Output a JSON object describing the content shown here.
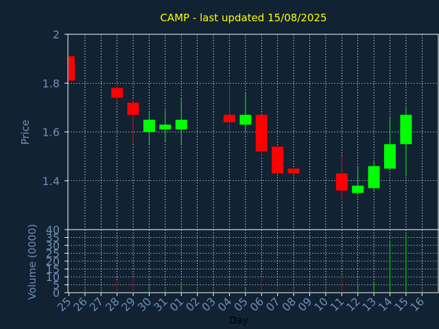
{
  "chart_data": {
    "type": "candlestick",
    "title": "CAMP - last updated 15/08/2025",
    "xlabel": "Day",
    "colors": {
      "background": "#112233",
      "grid": "#ffffff",
      "tick_text": "#6f8fb3",
      "title": "#ffff00",
      "xlabel": "#000000",
      "up": "#00ff00",
      "down": "#ff0000",
      "volume_up": "#00bb00",
      "volume_down": "#aa0000"
    },
    "days": [
      "25",
      "26",
      "27",
      "28",
      "29",
      "30",
      "31",
      "01",
      "02",
      "03",
      "04",
      "05",
      "06",
      "07",
      "08",
      "09",
      "10",
      "11",
      "12",
      "13",
      "14",
      "15",
      "16"
    ],
    "price_panel": {
      "ylabel": "Price",
      "ylim": [
        1.2,
        2.0
      ],
      "yticks": [
        1.4,
        1.6,
        1.8,
        2.0
      ],
      "ytick_labels": [
        "1.4",
        "1.6",
        "1.8",
        "2"
      ],
      "candles": [
        {
          "day": "25",
          "open": 1.91,
          "high": 1.91,
          "low": 1.81,
          "close": 1.81
        },
        {
          "day": "28",
          "open": 1.78,
          "high": 1.8,
          "low": 1.72,
          "close": 1.74
        },
        {
          "day": "29",
          "open": 1.72,
          "high": 1.73,
          "low": 1.55,
          "close": 1.67
        },
        {
          "day": "30",
          "open": 1.6,
          "high": 1.68,
          "low": 1.55,
          "close": 1.65
        },
        {
          "day": "31",
          "open": 1.61,
          "high": 1.69,
          "low": 1.56,
          "close": 1.63
        },
        {
          "day": "01",
          "open": 1.61,
          "high": 1.74,
          "low": 1.55,
          "close": 1.65
        },
        {
          "day": "04",
          "open": 1.67,
          "high": 1.82,
          "low": 1.57,
          "close": 1.64
        },
        {
          "day": "05",
          "open": 1.63,
          "high": 1.76,
          "low": 1.6,
          "close": 1.67
        },
        {
          "day": "06",
          "open": 1.67,
          "high": 1.67,
          "low": 1.5,
          "close": 1.52
        },
        {
          "day": "07",
          "open": 1.54,
          "high": 1.54,
          "low": 1.43,
          "close": 1.43
        },
        {
          "day": "08",
          "open": 1.45,
          "high": 1.45,
          "low": 1.43,
          "close": 1.43
        },
        {
          "day": "11",
          "open": 1.43,
          "high": 1.5,
          "low": 1.32,
          "close": 1.36
        },
        {
          "day": "12",
          "open": 1.35,
          "high": 1.46,
          "low": 1.35,
          "close": 1.38
        },
        {
          "day": "13",
          "open": 1.37,
          "high": 1.48,
          "low": 1.36,
          "close": 1.46
        },
        {
          "day": "14",
          "open": 1.45,
          "high": 1.66,
          "low": 1.45,
          "close": 1.55
        },
        {
          "day": "15",
          "open": 1.55,
          "high": 1.7,
          "low": 1.42,
          "close": 1.67
        }
      ]
    },
    "volume_panel": {
      "ylabel": "Volume (0000)",
      "ylim": [
        0,
        40
      ],
      "yticks": [
        0,
        5,
        10,
        15,
        20,
        25,
        30,
        35,
        40
      ],
      "ytick_labels": [
        "0",
        "5",
        "10",
        "15",
        "20",
        "25",
        "30",
        "35",
        "40"
      ],
      "bars": [
        {
          "day": "28",
          "value": 8,
          "direction": "down"
        },
        {
          "day": "29",
          "value": 10,
          "direction": "down"
        },
        {
          "day": "30",
          "value": 4,
          "direction": "up"
        },
        {
          "day": "31",
          "value": 2,
          "direction": "up"
        },
        {
          "day": "01",
          "value": 7,
          "direction": "up"
        },
        {
          "day": "04",
          "value": 4,
          "direction": "down"
        },
        {
          "day": "05",
          "value": 3,
          "direction": "up"
        },
        {
          "day": "06",
          "value": 10,
          "direction": "down"
        },
        {
          "day": "07",
          "value": 4,
          "direction": "down"
        },
        {
          "day": "08",
          "value": 1,
          "direction": "down"
        },
        {
          "day": "11",
          "value": 11,
          "direction": "down"
        },
        {
          "day": "12",
          "value": 5,
          "direction": "up"
        },
        {
          "day": "13",
          "value": 6,
          "direction": "up"
        },
        {
          "day": "14",
          "value": 32,
          "direction": "up"
        },
        {
          "day": "15",
          "value": 37,
          "direction": "up"
        }
      ]
    }
  }
}
